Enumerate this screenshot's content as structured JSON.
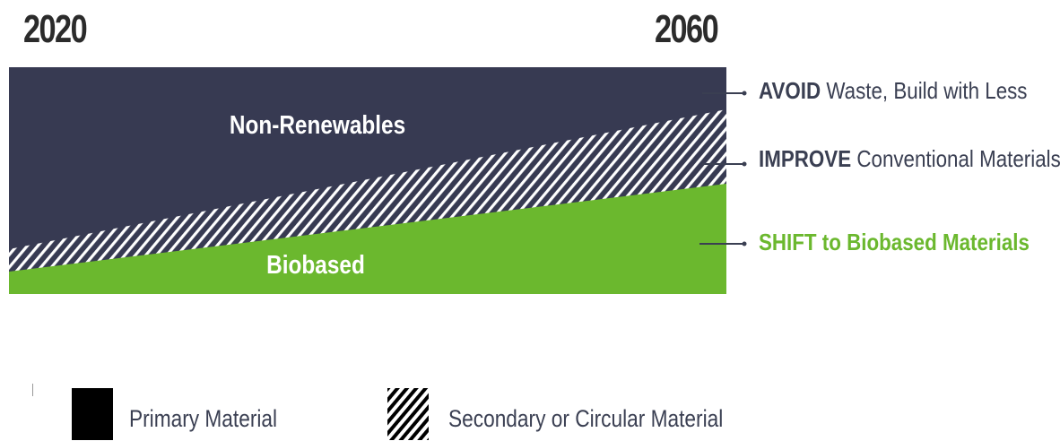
{
  "years": {
    "start": "2020",
    "end": "2060"
  },
  "bands": {
    "top": "Non-Renewables",
    "bottom": "Biobased"
  },
  "callouts": {
    "avoid": {
      "keyword": "AVOID",
      "rest": "Waste, Build with Less"
    },
    "improve": {
      "keyword": "IMPROVE",
      "rest": "Conventional Materials"
    },
    "shift": {
      "text": "SHIFT to Biobased Materials"
    }
  },
  "legend": {
    "primary": "Primary Material",
    "secondary": "Secondary or Circular Material"
  },
  "colors": {
    "non_renewables": "#373a52",
    "biobased": "#6bb82e",
    "hatch_line": "#ffffff",
    "legend_swatch": "#000000",
    "text_dark": "#3a3f52",
    "text_green": "#6bb82e"
  }
}
